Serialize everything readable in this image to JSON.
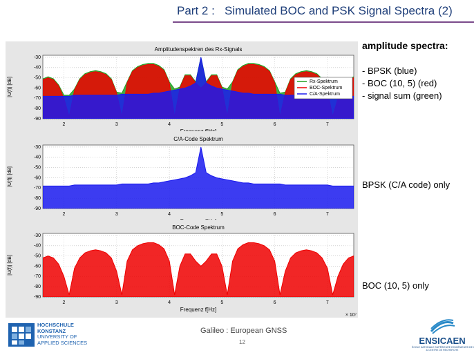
{
  "header": {
    "title": "Part 2 :   Simulated BOC and PSK Signal Spectra (2)"
  },
  "side_text": {
    "heading": "amplitude spectra:",
    "bullets": [
      "- BPSK (blue)",
      "- BOC (10, 5) (red)",
      "- signal sum (green)"
    ],
    "label_2": "BPSK (C/A code) only",
    "label_3": "BOC (10, 5) only"
  },
  "footer": {
    "text": "Galileo : European GNSS",
    "page": "12"
  },
  "logos": {
    "left": [
      "HOCHSCHULE",
      "KONSTANZ",
      "UNIVERSITY OF",
      "APPLIED SCIENCES"
    ],
    "right": {
      "name": "ENSICAEN",
      "subtitle": [
        "ÉCOLE NATIONALE SUPÉRIEURE D'INGÉNIEURS DE CAEN",
        "& CENTRE DE RECHERCHE"
      ]
    }
  },
  "chart_data": [
    {
      "type": "line",
      "title": "Amplitudenspektren des Rx-Signals",
      "x_label": "Frequenz f[Hz]",
      "y_label": "|U(f)| [dB]",
      "x_offset_label": "× 10⁷",
      "xlim": [
        1.6,
        7.5
      ],
      "xticks": [
        2,
        3,
        4,
        5,
        6,
        7
      ],
      "ylim": [
        -90,
        -28
      ],
      "yticks": [
        -30,
        -40,
        -50,
        -60,
        -70,
        -80,
        -90
      ],
      "grid": true,
      "legend": "right",
      "x": [
        1.6,
        1.7,
        1.8,
        1.9,
        2.0,
        2.1,
        2.2,
        2.3,
        2.4,
        2.5,
        2.6,
        2.7,
        2.8,
        2.9,
        3.0,
        3.1,
        3.2,
        3.3,
        3.4,
        3.5,
        3.6,
        3.7,
        3.8,
        3.9,
        4.0,
        4.1,
        4.2,
        4.3,
        4.4,
        4.5,
        4.6,
        4.7,
        4.8,
        4.9,
        5.0,
        5.1,
        5.2,
        5.3,
        5.4,
        5.5,
        5.6,
        5.7,
        5.8,
        5.9,
        6.0,
        6.1,
        6.2,
        6.3,
        6.4,
        6.5,
        6.6,
        6.7,
        6.8,
        6.9,
        7.0,
        7.1,
        7.2,
        7.3,
        7.4,
        7.5
      ],
      "series": [
        {
          "name": "Rx-Spektrum",
          "color": "#22a022",
          "values": [
            -51,
            -49,
            -51,
            -57,
            -67,
            -67,
            -61,
            -51,
            -46,
            -44,
            -43,
            -44,
            -46,
            -51,
            -64,
            -65,
            -54,
            -43,
            -39,
            -37,
            -36,
            -36,
            -38,
            -42,
            -54,
            -61,
            -59,
            -47,
            -47,
            -54,
            -30,
            -54,
            -47,
            -47,
            -59,
            -61,
            -54,
            -42,
            -38,
            -36,
            -36,
            -37,
            -39,
            -43,
            -54,
            -65,
            -64,
            -51,
            -46,
            -44,
            -43,
            -44,
            -46,
            -51,
            -61,
            -67,
            -67,
            -57,
            -51,
            -49
          ]
        },
        {
          "name": "BOC-Spektrum",
          "color": "#ee0000",
          "values": [
            -52,
            -50,
            -52,
            -58,
            -70,
            -88,
            -62,
            -52,
            -47,
            -45,
            -44,
            -45,
            -47,
            -52,
            -65,
            -88,
            -55,
            -44,
            -40,
            -38,
            -37,
            -37,
            -39,
            -43,
            -55,
            -88,
            -60,
            -48,
            -48,
            -55,
            -60,
            -55,
            -48,
            -48,
            -60,
            -88,
            -55,
            -43,
            -39,
            -37,
            -37,
            -38,
            -40,
            -44,
            -55,
            -88,
            -65,
            -52,
            -47,
            -45,
            -44,
            -45,
            -47,
            -52,
            -62,
            -88,
            -70,
            -58,
            -52,
            -50
          ]
        },
        {
          "name": "C/A-Spektrum",
          "color": "#1a1aee",
          "values": [
            -68,
            -68,
            -68,
            -68,
            -68,
            -68,
            -67,
            -67,
            -67,
            -67,
            -67,
            -67,
            -67,
            -67,
            -67,
            -66,
            -66,
            -66,
            -66,
            -66,
            -66,
            -65,
            -65,
            -64,
            -63,
            -62,
            -61,
            -60,
            -58,
            -55,
            -30,
            -55,
            -58,
            -60,
            -61,
            -62,
            -63,
            -64,
            -65,
            -65,
            -66,
            -66,
            -66,
            -66,
            -66,
            -66,
            -67,
            -67,
            -67,
            -67,
            -67,
            -67,
            -67,
            -67,
            -67,
            -68,
            -68,
            -68,
            -68,
            -68
          ]
        }
      ]
    },
    {
      "type": "line",
      "title": "C/A-Code Spektrum",
      "x_label": "Frequenz f[Hz]",
      "y_label": "|U(f)| [dB]",
      "x_offset_label": "× 10⁷",
      "xlim": [
        1.6,
        7.5
      ],
      "xticks": [
        2,
        3,
        4,
        5,
        6,
        7
      ],
      "ylim": [
        -90,
        -28
      ],
      "yticks": [
        -30,
        -40,
        -50,
        -60,
        -70,
        -80,
        -90
      ],
      "grid": true,
      "x": [
        1.6,
        1.7,
        1.8,
        1.9,
        2.0,
        2.1,
        2.2,
        2.3,
        2.4,
        2.5,
        2.6,
        2.7,
        2.8,
        2.9,
        3.0,
        3.1,
        3.2,
        3.3,
        3.4,
        3.5,
        3.6,
        3.7,
        3.8,
        3.9,
        4.0,
        4.1,
        4.2,
        4.3,
        4.4,
        4.5,
        4.6,
        4.7,
        4.8,
        4.9,
        5.0,
        5.1,
        5.2,
        5.3,
        5.4,
        5.5,
        5.6,
        5.7,
        5.8,
        5.9,
        6.0,
        6.1,
        6.2,
        6.3,
        6.4,
        6.5,
        6.6,
        6.7,
        6.8,
        6.9,
        7.0,
        7.1,
        7.2,
        7.3,
        7.4,
        7.5
      ],
      "series": [
        {
          "color": "#1a1aee",
          "values": [
            -68,
            -68,
            -68,
            -68,
            -68,
            -68,
            -67,
            -67,
            -67,
            -67,
            -67,
            -67,
            -67,
            -67,
            -67,
            -66,
            -66,
            -66,
            -66,
            -66,
            -66,
            -65,
            -65,
            -64,
            -63,
            -62,
            -61,
            -60,
            -58,
            -55,
            -30,
            -55,
            -58,
            -60,
            -61,
            -62,
            -63,
            -64,
            -65,
            -65,
            -66,
            -66,
            -66,
            -66,
            -66,
            -66,
            -67,
            -67,
            -67,
            -67,
            -67,
            -67,
            -67,
            -67,
            -67,
            -68,
            -68,
            -68,
            -68,
            -68
          ]
        }
      ]
    },
    {
      "type": "line",
      "title": "BOC-Code Spektrum",
      "x_label": "Frequenz f[Hz]",
      "y_label": "|U(f)| [dB]",
      "x_offset_label": "× 10⁷",
      "xlim": [
        1.6,
        7.5
      ],
      "xticks": [
        2,
        3,
        4,
        5,
        6,
        7
      ],
      "ylim": [
        -90,
        -28
      ],
      "yticks": [
        -30,
        -40,
        -50,
        -60,
        -70,
        -80,
        -90
      ],
      "grid": true,
      "x": [
        1.6,
        1.7,
        1.8,
        1.9,
        2.0,
        2.1,
        2.2,
        2.3,
        2.4,
        2.5,
        2.6,
        2.7,
        2.8,
        2.9,
        3.0,
        3.1,
        3.2,
        3.3,
        3.4,
        3.5,
        3.6,
        3.7,
        3.8,
        3.9,
        4.0,
        4.1,
        4.2,
        4.3,
        4.4,
        4.5,
        4.6,
        4.7,
        4.8,
        4.9,
        5.0,
        5.1,
        5.2,
        5.3,
        5.4,
        5.5,
        5.6,
        5.7,
        5.8,
        5.9,
        6.0,
        6.1,
        6.2,
        6.3,
        6.4,
        6.5,
        6.6,
        6.7,
        6.8,
        6.9,
        7.0,
        7.1,
        7.2,
        7.3,
        7.4,
        7.5
      ],
      "series": [
        {
          "color": "#ee0000",
          "values": [
            -52,
            -50,
            -52,
            -58,
            -70,
            -88,
            -62,
            -52,
            -47,
            -45,
            -44,
            -45,
            -47,
            -52,
            -65,
            -88,
            -55,
            -44,
            -40,
            -38,
            -37,
            -37,
            -39,
            -43,
            -55,
            -88,
            -60,
            -48,
            -48,
            -55,
            -60,
            -55,
            -48,
            -48,
            -60,
            -88,
            -55,
            -43,
            -39,
            -37,
            -37,
            -38,
            -40,
            -44,
            -55,
            -88,
            -65,
            -52,
            -47,
            -45,
            -44,
            -45,
            -47,
            -52,
            -62,
            -88,
            -70,
            -58,
            -52,
            -50
          ]
        }
      ]
    }
  ]
}
